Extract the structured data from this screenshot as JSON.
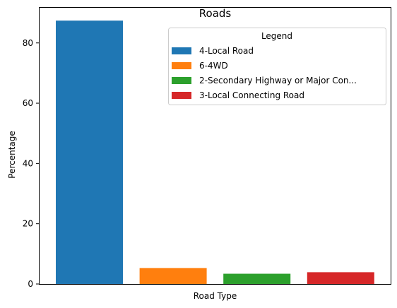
{
  "chart_data": {
    "type": "bar",
    "title": "Roads",
    "xlabel": "Road Type",
    "ylabel": "Percentage",
    "ylim": [
      0,
      91.9
    ],
    "yticks": [
      0,
      20,
      40,
      60,
      80
    ],
    "grid": false,
    "legend": {
      "title": "Legend",
      "position": "top-right"
    },
    "series": [
      {
        "name": "4-Local Road",
        "value": 87.4,
        "color": "#1f77b4"
      },
      {
        "name": "6-4WD",
        "value": 5.3,
        "color": "#ff7f0e"
      },
      {
        "name": "2-Secondary Highway or Major Con...",
        "value": 3.4,
        "color": "#2ca02c"
      },
      {
        "name": "3-Local Connecting Road",
        "value": 3.9,
        "color": "#d62728"
      }
    ]
  }
}
